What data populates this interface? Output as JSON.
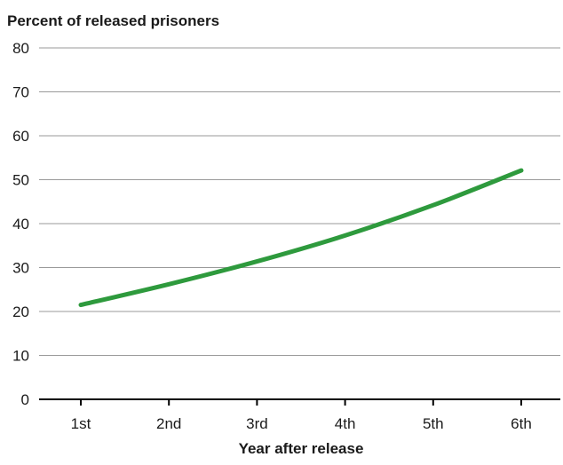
{
  "chart_data": {
    "type": "line",
    "title": "",
    "ylabel": "Percent of released prisoners",
    "xlabel": "Year after release",
    "categories": [
      "1st",
      "2nd",
      "3rd",
      "4th",
      "5th",
      "6th"
    ],
    "series": [
      {
        "values": [
          21.5,
          26.2,
          31.4,
          37.3,
          44.2,
          52.1
        ],
        "color": "#2e9a3d"
      }
    ],
    "yticks": [
      "0",
      "10",
      "20",
      "30",
      "40",
      "50",
      "60",
      "70",
      "80"
    ],
    "ylim": [
      0,
      80
    ],
    "grid": true,
    "grid_color": "#9a9a9a",
    "axis_color": "#000000"
  }
}
